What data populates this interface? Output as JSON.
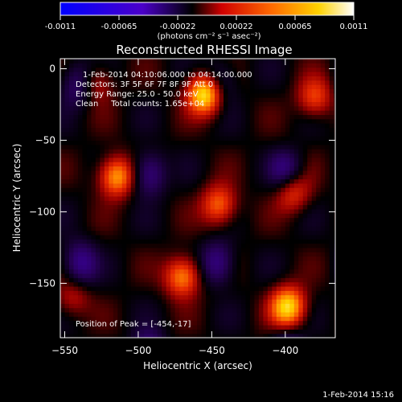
{
  "figure": {
    "title": "Reconstructed RHESSI Image",
    "footer_date": "1-Feb-2014 15:16"
  },
  "colorbar": {
    "ticks": [
      "-0.0011",
      "-0.00065",
      "-0.00022",
      "0.00022",
      "0.00065",
      "0.0011"
    ],
    "unit_label": "(photons cm⁻² s⁻¹ asec⁻²)",
    "colors": [
      "#0000ff",
      "#3300ff",
      "#000000",
      "#ff0000",
      "#ff8800",
      "#ffff00",
      "#ffffff"
    ]
  },
  "annotations": {
    "time": "1-Feb-2014 04:10:06.000 to 04:14:00.000",
    "detectors": "Detectors: 3F 5F 6F 7F 8F 9F Att 0",
    "energy": "Energy Range: 25.0 - 50.0 keV",
    "clean": "Clean     Total counts: 1.65e+04",
    "peak": "Position of Peak = [-454,-17]"
  },
  "chart_data": {
    "type": "heatmap",
    "title": "Reconstructed RHESSI Image",
    "xlabel": "Heliocentric X (arcsec)",
    "ylabel": "Heliocentric Y (arcsec)",
    "xlim": [
      -553,
      -366
    ],
    "ylim": [
      -188,
      7
    ],
    "xticks": [
      -550,
      -500,
      -450,
      -400
    ],
    "yticks": [
      0,
      -50,
      -100,
      -150
    ],
    "colormap": "diverging blue-black-red-yellow-white",
    "value_range": [
      -0.0011,
      0.0011
    ],
    "peak_position": [
      -454,
      -17
    ],
    "sources": [
      {
        "x": -454,
        "y": -17,
        "value": 0.0011
      },
      {
        "x": -515,
        "y": -75,
        "value": 0.00075
      },
      {
        "x": -470,
        "y": -145,
        "value": 0.0007
      },
      {
        "x": -398,
        "y": -166,
        "value": 0.0009
      },
      {
        "x": -445,
        "y": -95,
        "value": 0.0006
      },
      {
        "x": -395,
        "y": -85,
        "value": 0.00055
      },
      {
        "x": -380,
        "y": -20,
        "value": 0.0005
      },
      {
        "x": -530,
        "y": -10,
        "value": 0.0004
      },
      {
        "x": -545,
        "y": -160,
        "value": 0.0003
      }
    ]
  }
}
